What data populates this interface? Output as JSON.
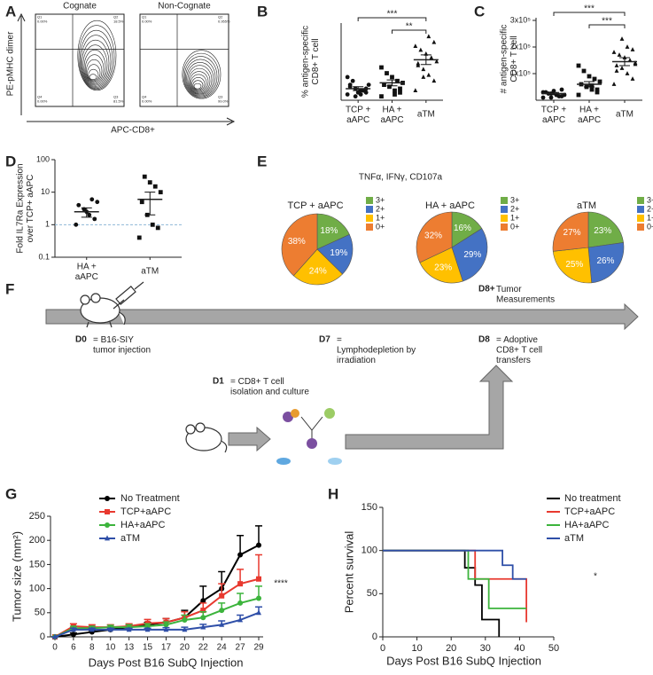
{
  "panel_labels": [
    "A",
    "B",
    "C",
    "D",
    "E",
    "F",
    "G",
    "H"
  ],
  "panel_a": {
    "y_label": "PE-pMHC dimer",
    "x_label": "APC-CD8+",
    "plots": [
      {
        "title": "Cognate",
        "quadrants": [
          "Q1\n0.00%",
          "Q2\n18.5%",
          "Q4\n0.00%",
          "Q3\n81.5%"
        ]
      },
      {
        "title": "Non-Cognate",
        "quadrants": [
          "Q1\n0.00%",
          "Q2\n0.955%",
          "Q4\n0.00%",
          "Q3\n99.0%"
        ]
      }
    ]
  },
  "chart_data": [
    {
      "type": "dotplot",
      "y_label": "% antigen-specific\nCD8+ T cell",
      "ylim": [
        0,
        40
      ],
      "groups": [
        {
          "name": "TCP +\naAPC",
          "marker": "circle",
          "values": [
            3,
            4,
            5,
            6,
            7,
            8,
            5,
            4,
            10,
            12,
            6,
            3,
            2,
            8
          ],
          "mean": 6,
          "error": 1
        },
        {
          "name": "HA +\naAPC",
          "marker": "square",
          "values": [
            2,
            4,
            5,
            7,
            8,
            9,
            10,
            12,
            14,
            17,
            6,
            3
          ],
          "mean": 9,
          "error": 1.5
        },
        {
          "name": "aTM",
          "marker": "triangle",
          "values": [
            5,
            10,
            13,
            16,
            18,
            20,
            22,
            24,
            26,
            28,
            30,
            33,
            12,
            19
          ],
          "mean": 21,
          "error": 2.5
        }
      ],
      "brackets": [
        {
          "from": 0,
          "to": 2,
          "label": "***"
        },
        {
          "from": 1,
          "to": 2,
          "label": "**"
        }
      ]
    },
    {
      "type": "dotplot",
      "y_label": "# antigen-specific\nCD8+ T cell",
      "ylim": [
        0,
        310000
      ],
      "yticks": [
        {
          "value": 100000,
          "label": "1x10⁵"
        },
        {
          "value": 200000,
          "label": "2x10⁵"
        },
        {
          "value": 300000,
          "label": "3x10⁵"
        }
      ],
      "groups": [
        {
          "name": "TCP +\naAPC",
          "marker": "circle",
          "values": [
            10000,
            15000,
            20000,
            25000,
            30000,
            20000,
            15000,
            35000,
            25000,
            30000,
            40000,
            20000,
            10000
          ],
          "mean": 25000,
          "error": 4000
        },
        {
          "name": "HA +\naAPC",
          "marker": "square",
          "values": [
            20000,
            30000,
            40000,
            50000,
            60000,
            70000,
            80000,
            90000,
            110000,
            130000,
            40000,
            55000
          ],
          "mean": 60000,
          "error": 10000
        },
        {
          "name": "aTM",
          "marker": "triangle",
          "values": [
            60000,
            80000,
            100000,
            120000,
            130000,
            140000,
            150000,
            160000,
            170000,
            180000,
            190000,
            200000,
            230000,
            110000,
            135000
          ],
          "mean": 145000,
          "error": 15000
        }
      ],
      "brackets": [
        {
          "from": 0,
          "to": 2,
          "label": "***"
        },
        {
          "from": 1,
          "to": 2,
          "label": "***"
        }
      ]
    },
    {
      "type": "dotplot",
      "y_label": "Fold IL7Ra Expression\nover TCP+ aAPC",
      "log_scale": true,
      "ylim": [
        0.1,
        100
      ],
      "yticks": [
        0.1,
        1,
        10,
        100
      ],
      "reference": 1,
      "reference_color": "#8fb8d8",
      "groups": [
        {
          "name": "HA +\naAPC",
          "marker": "circle",
          "values": [
            1,
            1.5,
            2,
            3,
            4,
            5,
            6,
            2.5
          ],
          "mean": 2.5,
          "error": 0.8
        },
        {
          "name": "aTM",
          "marker": "square",
          "values": [
            0.4,
            0.8,
            1,
            2,
            5,
            10,
            15,
            20,
            30
          ],
          "mean": 6,
          "error": 4
        }
      ]
    },
    {
      "type": "pie",
      "title": "TNFα, IFNγ, CD107a",
      "labels": [
        "3+",
        "2+",
        "1+",
        "0+"
      ],
      "colors": [
        "#70ad47",
        "#4472c4",
        "#ffc000",
        "#ed7d31"
      ],
      "pies": [
        {
          "name": "TCP + aAPC",
          "values": [
            18,
            19,
            24,
            38
          ],
          "value_labels": [
            "18%",
            "19%",
            "24%",
            "38%"
          ]
        },
        {
          "name": "HA + aAPC",
          "values": [
            16,
            29,
            23,
            32
          ],
          "value_labels": [
            "16%",
            "29%",
            "23%",
            "32%"
          ]
        },
        {
          "name": "aTM",
          "values": [
            23,
            26,
            25,
            27
          ],
          "value_labels": [
            "23%",
            "26%",
            "25%",
            "27%"
          ]
        }
      ]
    },
    {
      "type": "line",
      "y_label": "Tumor size (mm²)",
      "x_label": "Days Post B16 SubQ Injection",
      "annotation": "****",
      "categories": [
        "0",
        "6",
        "8",
        "10",
        "13",
        "15",
        "17",
        "20",
        "22",
        "24",
        "27",
        "29"
      ],
      "ylim": [
        0,
        250
      ],
      "yticks": [
        0,
        50,
        100,
        150,
        200,
        250
      ],
      "series": [
        {
          "name": "No Treatment",
          "color": "#000000",
          "marker": "circle",
          "values": [
            0,
            5,
            10,
            15,
            20,
            25,
            30,
            40,
            75,
            100,
            170,
            190
          ],
          "errors": [
            0,
            3,
            3,
            4,
            5,
            5,
            8,
            15,
            30,
            35,
            40,
            40
          ]
        },
        {
          "name": "TCP+aAPC",
          "color": "#e8392f",
          "marker": "square",
          "values": [
            0,
            22,
            20,
            20,
            22,
            28,
            30,
            40,
            55,
            85,
            110,
            120
          ],
          "errors": [
            0,
            5,
            5,
            5,
            5,
            8,
            8,
            12,
            15,
            25,
            30,
            50
          ]
        },
        {
          "name": "HA+aAPC",
          "color": "#3cb43c",
          "marker": "circle",
          "values": [
            0,
            18,
            18,
            20,
            20,
            22,
            25,
            35,
            40,
            55,
            70,
            80
          ],
          "errors": [
            0,
            4,
            4,
            4,
            5,
            5,
            6,
            10,
            12,
            15,
            20,
            25
          ]
        },
        {
          "name": "aTM",
          "color": "#2f4fa8",
          "marker": "triangle",
          "values": [
            0,
            15,
            15,
            15,
            15,
            15,
            15,
            15,
            20,
            25,
            35,
            50
          ],
          "errors": [
            0,
            3,
            3,
            3,
            3,
            3,
            4,
            5,
            6,
            8,
            10,
            12
          ]
        }
      ]
    },
    {
      "type": "survival",
      "y_label": "Percent survival",
      "x_label": "Days Post B16 SubQ Injection",
      "annotation": "*",
      "xlim": [
        0,
        50
      ],
      "xticks": [
        0,
        10,
        20,
        30,
        40,
        50
      ],
      "ylim": [
        0,
        150
      ],
      "yticks": [
        0,
        50,
        100,
        150
      ],
      "series": [
        {
          "name": "No treatment",
          "color": "#000000",
          "x": [
            0,
            24,
            27,
            29,
            34
          ],
          "y": [
            100,
            80,
            60,
            20,
            0
          ]
        },
        {
          "name": "TCP+aAPC",
          "color": "#e8392f",
          "x": [
            0,
            27,
            42
          ],
          "y": [
            100,
            67,
            17
          ]
        },
        {
          "name": "HA+aAPC",
          "color": "#3cb43c",
          "x": [
            0,
            25,
            31,
            42
          ],
          "y": [
            100,
            67,
            33,
            33
          ]
        },
        {
          "name": "aTM",
          "color": "#2f4fa8",
          "x": [
            0,
            35,
            38,
            42
          ],
          "y": [
            100,
            83,
            67,
            67
          ]
        }
      ]
    }
  ],
  "timeline": {
    "top_note": {
      "label": "D8+",
      "text": "Tumor\nMeasurements"
    },
    "events": [
      {
        "label": "D0",
        "text": "= B16-SIY\ntumor injection"
      },
      {
        "label": "D7",
        "text": "=\nLymphodepletion by\nirradiation"
      },
      {
        "label": "D8",
        "text": "= Adoptive\nCD8+ T cell\ntransfers"
      },
      {
        "label": "D1",
        "text": "= CD8+ T cell\nisolation and culture"
      }
    ]
  }
}
